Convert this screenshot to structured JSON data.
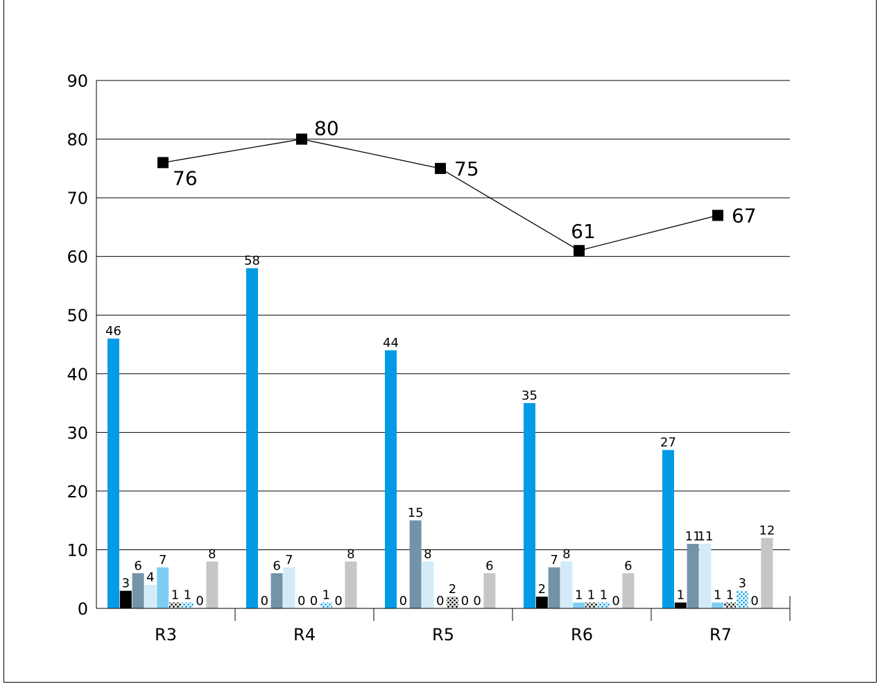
{
  "chart_data": {
    "type": "bar",
    "categories": [
      "R3",
      "R4",
      "R5",
      "R6",
      "R7"
    ],
    "ylim": [
      0,
      90
    ],
    "yticks": [
      0,
      10,
      20,
      30,
      40,
      50,
      60,
      70,
      80,
      90
    ],
    "grid": true,
    "legend": "none",
    "series": [
      {
        "values": [
          46,
          58,
          44,
          35,
          27
        ],
        "color": "#039be5",
        "pattern": "solid",
        "label_positions": [
          "above",
          "above",
          "above",
          "above",
          "above"
        ]
      },
      {
        "values": [
          3,
          0,
          0,
          2,
          1
        ],
        "color": "#000000",
        "pattern": "solid",
        "label_positions": [
          "above",
          "above",
          "above",
          "above",
          "above"
        ]
      },
      {
        "values": [
          6,
          6,
          15,
          7,
          11
        ],
        "color": "#7394a8",
        "pattern": "solid",
        "label_positions": [
          "above",
          "above",
          "above",
          "above",
          "above"
        ]
      },
      {
        "values": [
          4,
          7,
          8,
          8,
          11
        ],
        "color": "#d3ebf8",
        "pattern": "solid",
        "label_positions": [
          "above",
          "above",
          "above",
          "above",
          "above"
        ]
      },
      {
        "values": [
          7,
          0,
          0,
          1,
          1
        ],
        "color": "#7fcdf2",
        "pattern": "solid",
        "label_positions": [
          "above",
          "above",
          "above",
          "above",
          "above"
        ]
      },
      {
        "values": [
          1,
          0,
          2,
          1,
          1
        ],
        "color": "#000000",
        "pattern": "dots-black",
        "label_positions": [
          "above",
          "above",
          "above",
          "above",
          "above"
        ]
      },
      {
        "values": [
          1,
          1,
          0,
          1,
          3
        ],
        "color": "#039be5",
        "pattern": "dots-blue",
        "label_positions": [
          "above",
          "above",
          "above",
          "above",
          "above"
        ]
      },
      {
        "values": [
          0,
          0,
          0,
          0,
          0
        ],
        "color": "#ffffff",
        "pattern": "solid",
        "label_positions": [
          "above",
          "above",
          "above",
          "above",
          "above"
        ]
      },
      {
        "values": [
          8,
          8,
          6,
          6,
          12
        ],
        "color": "#c6c6c6",
        "pattern": "solid",
        "label_positions": [
          "above",
          "above",
          "above",
          "above",
          "above"
        ]
      }
    ],
    "line_series": {
      "values": [
        76,
        80,
        75,
        61,
        67
      ],
      "color": "#000000",
      "marker": "square",
      "label_positions": [
        "below-right",
        "above-right",
        "right",
        "above",
        "right"
      ]
    }
  }
}
